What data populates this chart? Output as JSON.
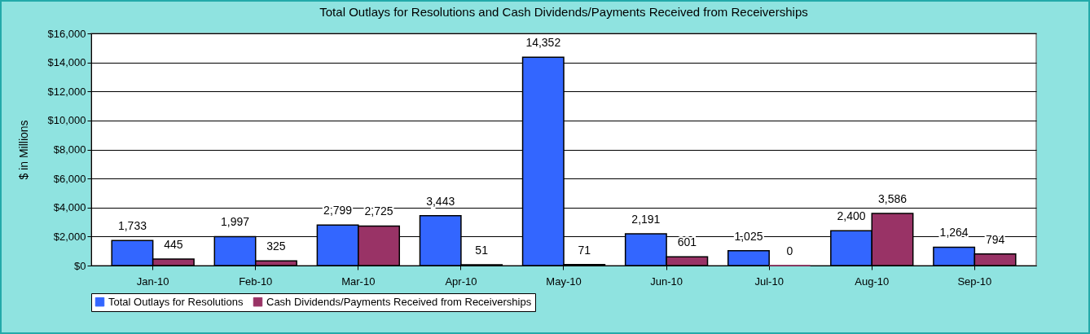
{
  "chart_data": {
    "type": "bar",
    "title": "Total Outlays for Resolutions and Cash Dividends/Payments Received from Receiverships",
    "ylabel": "$ in Millions",
    "categories": [
      "Jan-10",
      "Feb-10",
      "Mar-10",
      "Apr-10",
      "May-10",
      "Jun-10",
      "Jul-10",
      "Aug-10",
      "Sep-10"
    ],
    "series": [
      {
        "name": "Total Outlays for Resolutions",
        "color": "#3366ff",
        "values": [
          1733,
          1997,
          2799,
          3443,
          14352,
          2191,
          1025,
          2400,
          1264
        ],
        "value_labels": [
          "1,733",
          "1,997",
          "2,799",
          "3,443",
          "14,352",
          "2,191",
          "1,025",
          "2,400",
          "1,264"
        ]
      },
      {
        "name": "Cash Dividends/Payments Received from Receiverships",
        "color": "#993366",
        "values": [
          445,
          325,
          2725,
          51,
          71,
          601,
          0,
          3586,
          794
        ],
        "value_labels": [
          "445",
          "325",
          "2,725",
          "51",
          "71",
          "601",
          "0",
          "3,586",
          "794"
        ]
      }
    ],
    "ylim": [
      0,
      16000
    ],
    "yticks": [
      {
        "value": 0,
        "label": "$0"
      },
      {
        "value": 2000,
        "label": "$2,000"
      },
      {
        "value": 4000,
        "label": "$4,000"
      },
      {
        "value": 6000,
        "label": "$6,000"
      },
      {
        "value": 8000,
        "label": "$8,000"
      },
      {
        "value": 10000,
        "label": "$10,000"
      },
      {
        "value": 12000,
        "label": "$12,000"
      },
      {
        "value": 14000,
        "label": "$14,000"
      },
      {
        "value": 16000,
        "label": "$16,000"
      }
    ],
    "grid": "y",
    "legend": "bottom"
  }
}
